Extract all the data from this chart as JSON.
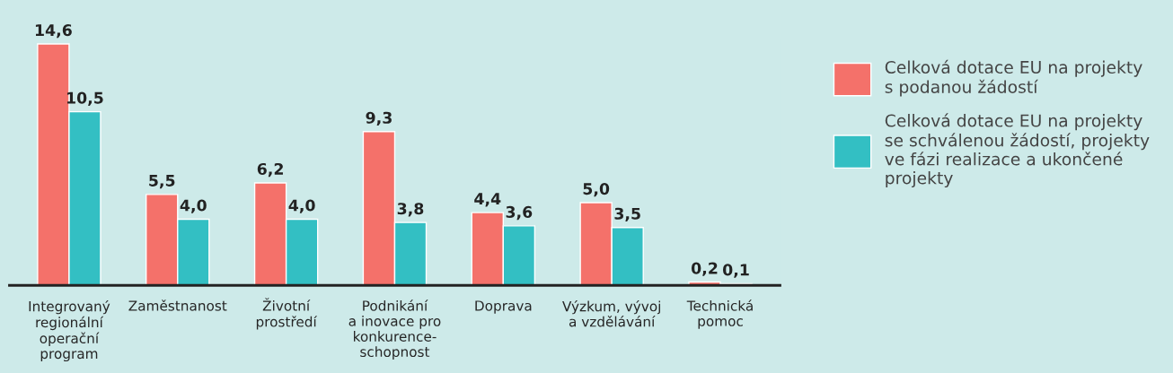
{
  "chart_data": {
    "type": "bar",
    "categories": [
      "Integrovaný\nregionální\noperační\nprogram",
      "Zaměstnanost",
      "Životní\nprostředí",
      "Podnikání\na inovace pro\nkonkurence-\nschopnost",
      "Doprava",
      "Výzkum, vývoj\na vzdělávání",
      "Technická\npomoc"
    ],
    "series": [
      {
        "name": "Celková dotace EU na projekty\ns podanou žádostí",
        "color": "#f4716a",
        "values": [
          14.6,
          5.5,
          6.2,
          9.3,
          4.4,
          5.0,
          0.2
        ],
        "value_labels": [
          "14,6",
          "5,5",
          "6,2",
          "9,3",
          "4,4",
          "5,0",
          "0,2"
        ]
      },
      {
        "name": "Celková dotace EU na projekty\nse schválenou žádostí, projekty\nve fázi realizace a ukončené\nprojekty",
        "color": "#33bfc3",
        "values": [
          10.5,
          4.0,
          4.0,
          3.8,
          3.6,
          3.5,
          0.1
        ],
        "value_labels": [
          "10,5",
          "4,0",
          "4,0",
          "3,8",
          "3,6",
          "3,5",
          "0,1"
        ]
      }
    ],
    "legend": "right",
    "grid": false
  }
}
